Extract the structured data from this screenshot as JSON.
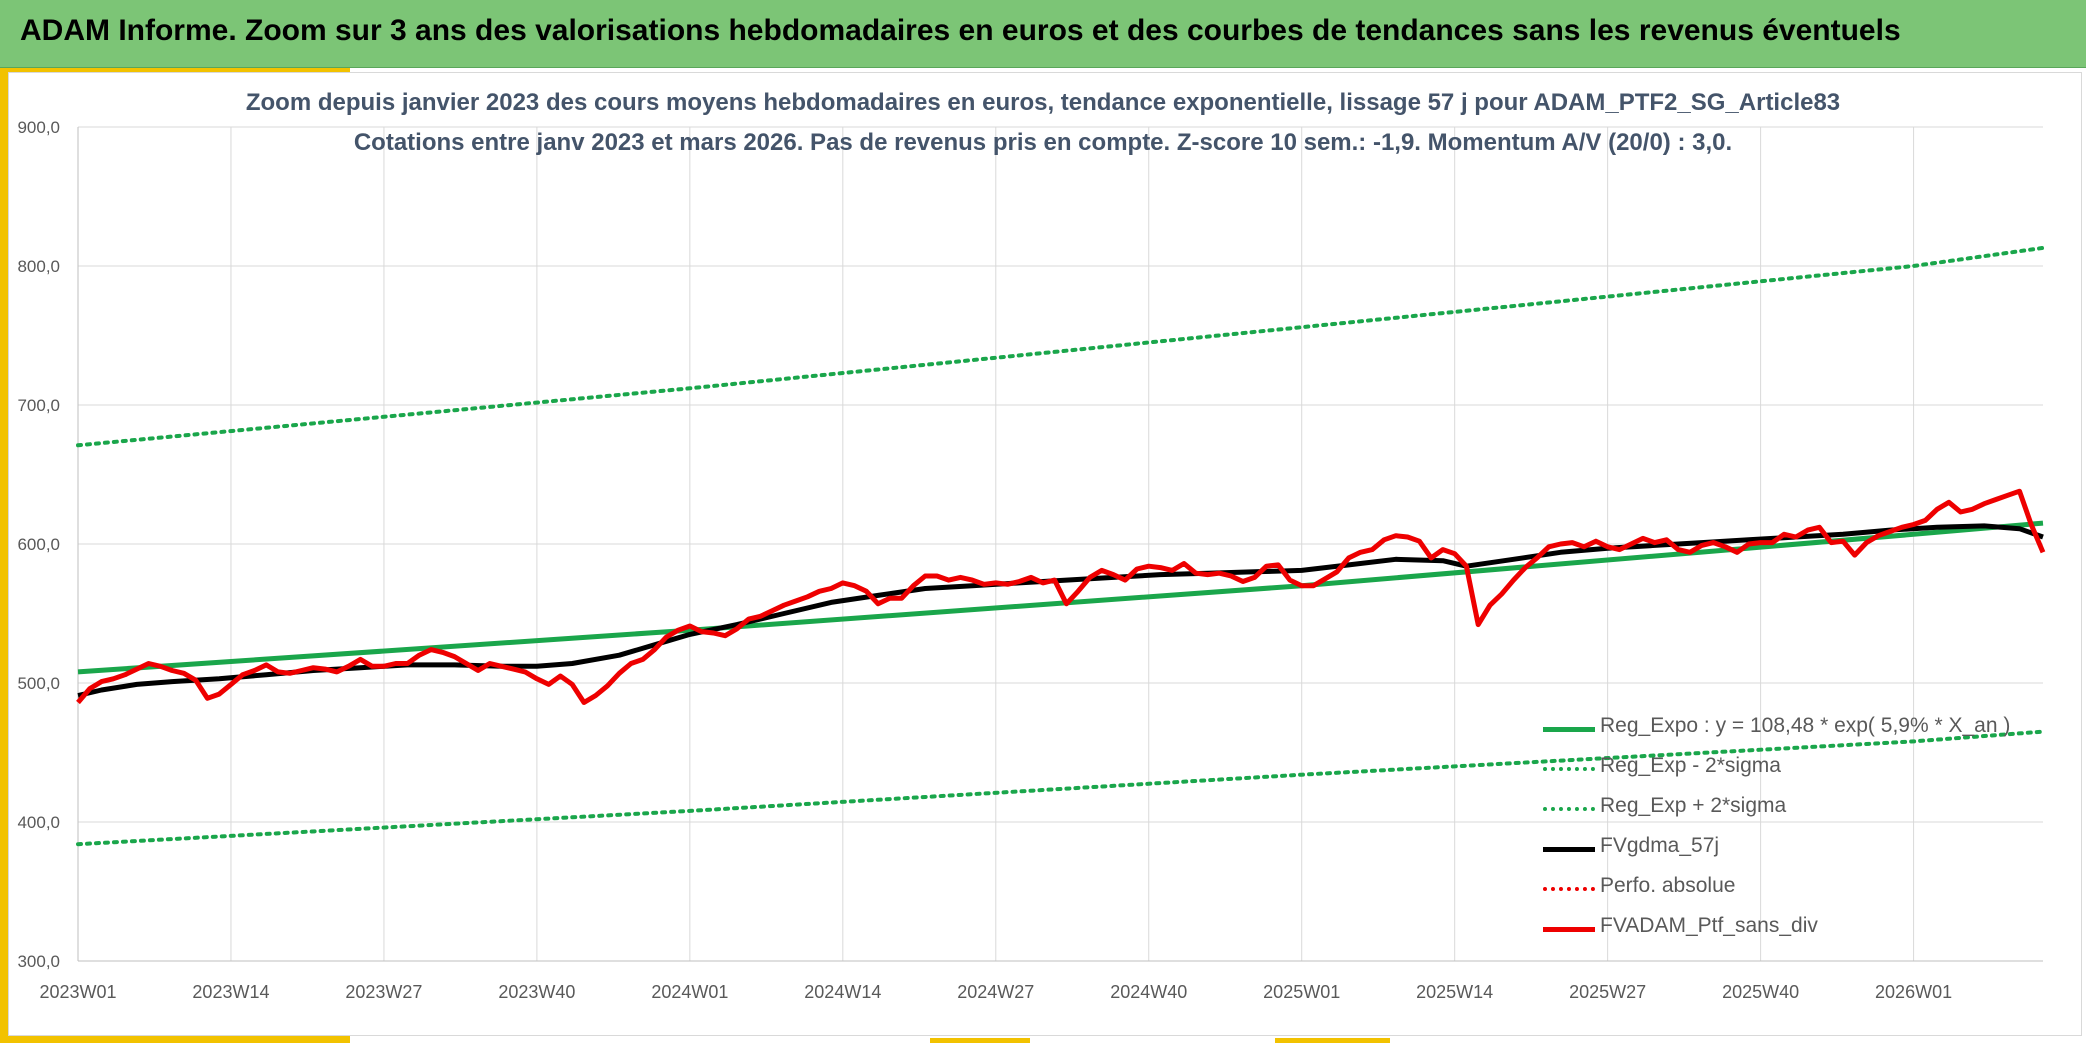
{
  "banner": {
    "title": "ADAM Informe. Zoom sur 3 ans des valorisations hebdomadaires en euros et des courbes de tendances sans les revenus éventuels"
  },
  "colors": {
    "banner_bg": "#7cc576",
    "accent": "#f2c200",
    "trend_green": "#1aa64b",
    "black_series": "#000000",
    "red_series": "#ee0000",
    "title_text": "#44546a"
  },
  "chart_data": {
    "type": "line",
    "title_line1": "Zoom depuis janvier 2023 des cours moyens hebdomadaires en euros, tendance exponentielle, lissage 57 j pour ADAM_PTF2_SG_Article83",
    "title_line2": "Cotations entre janv 2023 et mars 2026. Pas de revenus pris en compte. Z-score 10 sem.: -1,9. Momentum A/V (20/0) : 3,0.",
    "ylim": [
      300,
      900
    ],
    "y_ticks": [
      "900,0",
      "800,0",
      "700,0",
      "600,0",
      "500,0",
      "400,0",
      "300,0"
    ],
    "y_tick_values": [
      900,
      800,
      700,
      600,
      500,
      400,
      300
    ],
    "x_ticks": [
      "2023W01",
      "2023W14",
      "2023W27",
      "2023W40",
      "2024W01",
      "2024W14",
      "2024W27",
      "2024W40",
      "2025W01",
      "2025W14",
      "2025W27",
      "2025W40",
      "2026W01"
    ],
    "x_tick_weeks": [
      0,
      13,
      26,
      39,
      52,
      65,
      78,
      91,
      104,
      117,
      130,
      143,
      156
    ],
    "xlim_weeks": [
      0,
      167
    ],
    "grid": true,
    "legend_position": "bottom-right",
    "legend": [
      "Reg_Expo : y = 108,48 * exp( 5,9% * X_an )",
      "Reg_Exp - 2*sigma",
      "Reg_Exp + 2*sigma",
      "FVgdma_57j",
      "Perfo. absolue",
      "FVADAM_Ptf_sans_div"
    ],
    "series": [
      {
        "name": "Reg_Expo : y = 108,48 * exp( 5,9% * X_an )",
        "style": "solid-green",
        "points": [
          [
            0,
            508
          ],
          [
            52,
            538
          ],
          [
            104,
            570
          ],
          [
            156,
            607
          ],
          [
            167,
            615
          ]
        ]
      },
      {
        "name": "Reg_Exp - 2*sigma",
        "style": "dotted-green",
        "points": [
          [
            0,
            384
          ],
          [
            52,
            408
          ],
          [
            104,
            434
          ],
          [
            156,
            458
          ],
          [
            167,
            465
          ]
        ]
      },
      {
        "name": "Reg_Exp + 2*sigma",
        "style": "dotted-green",
        "points": [
          [
            0,
            671
          ],
          [
            52,
            712
          ],
          [
            104,
            756
          ],
          [
            156,
            800
          ],
          [
            167,
            813
          ]
        ]
      },
      {
        "name": "FVgdma_57j",
        "style": "solid-black",
        "points": [
          [
            0,
            491
          ],
          [
            2,
            495
          ],
          [
            5,
            499
          ],
          [
            8,
            501
          ],
          [
            12,
            503
          ],
          [
            16,
            506
          ],
          [
            20,
            509
          ],
          [
            24,
            511
          ],
          [
            28,
            513
          ],
          [
            32,
            513
          ],
          [
            36,
            512
          ],
          [
            39,
            512
          ],
          [
            42,
            514
          ],
          [
            46,
            520
          ],
          [
            50,
            530
          ],
          [
            52,
            535
          ],
          [
            56,
            542
          ],
          [
            60,
            550
          ],
          [
            64,
            558
          ],
          [
            68,
            563
          ],
          [
            72,
            568
          ],
          [
            76,
            570
          ],
          [
            80,
            572
          ],
          [
            84,
            574
          ],
          [
            88,
            576
          ],
          [
            92,
            578
          ],
          [
            96,
            579
          ],
          [
            100,
            580
          ],
          [
            104,
            581
          ],
          [
            108,
            585
          ],
          [
            112,
            589
          ],
          [
            116,
            588
          ],
          [
            118,
            584
          ],
          [
            122,
            589
          ],
          [
            126,
            594
          ],
          [
            130,
            597
          ],
          [
            134,
            599
          ],
          [
            138,
            601
          ],
          [
            142,
            603
          ],
          [
            146,
            605
          ],
          [
            150,
            607
          ],
          [
            154,
            610
          ],
          [
            158,
            612
          ],
          [
            162,
            613
          ],
          [
            165,
            611
          ],
          [
            167,
            605
          ]
        ]
      },
      {
        "name": "Perfo. absolue",
        "style": "dotted-red",
        "points": []
      },
      {
        "name": "FVADAM_Ptf_sans_div",
        "style": "solid-red",
        "points": [
          [
            0,
            486
          ],
          [
            1,
            496
          ],
          [
            2,
            501
          ],
          [
            3,
            503
          ],
          [
            4,
            506
          ],
          [
            5,
            510
          ],
          [
            6,
            514
          ],
          [
            7,
            512
          ],
          [
            8,
            509
          ],
          [
            9,
            507
          ],
          [
            10,
            502
          ],
          [
            11,
            489
          ],
          [
            12,
            492
          ],
          [
            13,
            499
          ],
          [
            14,
            506
          ],
          [
            15,
            509
          ],
          [
            16,
            513
          ],
          [
            17,
            508
          ],
          [
            18,
            507
          ],
          [
            19,
            509
          ],
          [
            20,
            511
          ],
          [
            21,
            510
          ],
          [
            22,
            508
          ],
          [
            23,
            512
          ],
          [
            24,
            517
          ],
          [
            25,
            512
          ],
          [
            26,
            512
          ],
          [
            27,
            514
          ],
          [
            28,
            514
          ],
          [
            29,
            520
          ],
          [
            30,
            524
          ],
          [
            31,
            522
          ],
          [
            32,
            519
          ],
          [
            33,
            514
          ],
          [
            34,
            509
          ],
          [
            35,
            514
          ],
          [
            36,
            512
          ],
          [
            37,
            510
          ],
          [
            38,
            508
          ],
          [
            39,
            503
          ],
          [
            40,
            499
          ],
          [
            41,
            505
          ],
          [
            42,
            499
          ],
          [
            43,
            486
          ],
          [
            44,
            491
          ],
          [
            45,
            498
          ],
          [
            46,
            507
          ],
          [
            47,
            514
          ],
          [
            48,
            517
          ],
          [
            49,
            524
          ],
          [
            50,
            533
          ],
          [
            51,
            538
          ],
          [
            52,
            541
          ],
          [
            53,
            537
          ],
          [
            54,
            536
          ],
          [
            55,
            534
          ],
          [
            56,
            539
          ],
          [
            57,
            546
          ],
          [
            58,
            548
          ],
          [
            59,
            552
          ],
          [
            60,
            556
          ],
          [
            61,
            559
          ],
          [
            62,
            562
          ],
          [
            63,
            566
          ],
          [
            64,
            568
          ],
          [
            65,
            572
          ],
          [
            66,
            570
          ],
          [
            67,
            566
          ],
          [
            68,
            557
          ],
          [
            69,
            561
          ],
          [
            70,
            561
          ],
          [
            71,
            570
          ],
          [
            72,
            577
          ],
          [
            73,
            577
          ],
          [
            74,
            574
          ],
          [
            75,
            576
          ],
          [
            76,
            574
          ],
          [
            77,
            571
          ],
          [
            78,
            572
          ],
          [
            79,
            571
          ],
          [
            80,
            573
          ],
          [
            81,
            576
          ],
          [
            82,
            572
          ],
          [
            83,
            574
          ],
          [
            84,
            557
          ],
          [
            85,
            566
          ],
          [
            86,
            576
          ],
          [
            87,
            581
          ],
          [
            88,
            578
          ],
          [
            89,
            574
          ],
          [
            90,
            582
          ],
          [
            91,
            584
          ],
          [
            92,
            583
          ],
          [
            93,
            581
          ],
          [
            94,
            586
          ],
          [
            95,
            579
          ],
          [
            96,
            578
          ],
          [
            97,
            579
          ],
          [
            98,
            577
          ],
          [
            99,
            573
          ],
          [
            100,
            576
          ],
          [
            101,
            584
          ],
          [
            102,
            585
          ],
          [
            103,
            574
          ],
          [
            104,
            570
          ],
          [
            105,
            570
          ],
          [
            106,
            575
          ],
          [
            107,
            580
          ],
          [
            108,
            590
          ],
          [
            109,
            594
          ],
          [
            110,
            596
          ],
          [
            111,
            603
          ],
          [
            112,
            606
          ],
          [
            113,
            605
          ],
          [
            114,
            602
          ],
          [
            115,
            590
          ],
          [
            116,
            596
          ],
          [
            117,
            593
          ],
          [
            118,
            584
          ],
          [
            119,
            542
          ],
          [
            120,
            556
          ],
          [
            121,
            564
          ],
          [
            122,
            574
          ],
          [
            123,
            583
          ],
          [
            124,
            590
          ],
          [
            125,
            598
          ],
          [
            126,
            600
          ],
          [
            127,
            601
          ],
          [
            128,
            598
          ],
          [
            129,
            602
          ],
          [
            130,
            598
          ],
          [
            131,
            596
          ],
          [
            132,
            600
          ],
          [
            133,
            604
          ],
          [
            134,
            601
          ],
          [
            135,
            603
          ],
          [
            136,
            596
          ],
          [
            137,
            594
          ],
          [
            138,
            599
          ],
          [
            139,
            601
          ],
          [
            140,
            598
          ],
          [
            141,
            594
          ],
          [
            142,
            600
          ],
          [
            143,
            601
          ],
          [
            144,
            601
          ],
          [
            145,
            607
          ],
          [
            146,
            605
          ],
          [
            147,
            610
          ],
          [
            148,
            612
          ],
          [
            149,
            601
          ],
          [
            150,
            602
          ],
          [
            151,
            592
          ],
          [
            152,
            601
          ],
          [
            153,
            606
          ],
          [
            154,
            609
          ],
          [
            155,
            612
          ],
          [
            156,
            614
          ],
          [
            157,
            617
          ],
          [
            158,
            625
          ],
          [
            159,
            630
          ],
          [
            160,
            623
          ],
          [
            161,
            625
          ],
          [
            162,
            629
          ],
          [
            163,
            632
          ],
          [
            164,
            635
          ],
          [
            165,
            638
          ],
          [
            166,
            614
          ],
          [
            167,
            594
          ]
        ]
      }
    ]
  }
}
